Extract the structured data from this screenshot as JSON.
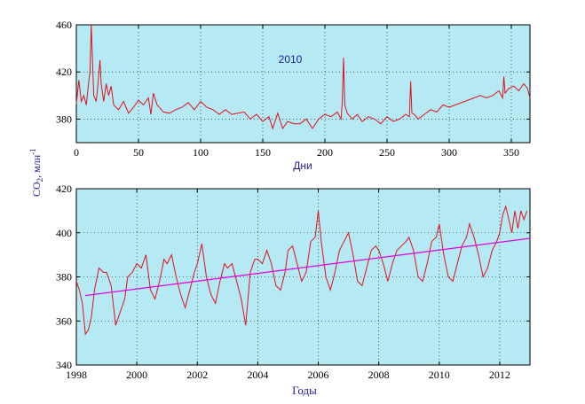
{
  "chart_data": [
    {
      "type": "line",
      "xlabel": "Дни",
      "ylabel": "",
      "annotation": "2010",
      "xlim": [
        0,
        365
      ],
      "ylim": [
        360,
        460
      ],
      "xticks": [
        0,
        50,
        100,
        150,
        200,
        250,
        300,
        350
      ],
      "yticks": [
        380,
        420,
        460
      ],
      "grid": true,
      "series": [
        {
          "color": "#e0101a",
          "x": [
            0,
            2,
            4,
            6,
            8,
            10,
            11,
            12,
            13,
            14,
            16,
            17,
            19,
            20,
            22,
            24,
            26,
            28,
            30,
            34,
            38,
            42,
            46,
            50,
            54,
            58,
            60,
            62,
            65,
            70,
            75,
            80,
            85,
            90,
            95,
            100,
            105,
            110,
            115,
            120,
            125,
            130,
            135,
            140,
            145,
            150,
            155,
            158,
            162,
            166,
            170,
            175,
            180,
            185,
            190,
            195,
            200,
            205,
            210,
            213,
            214,
            215,
            216,
            218,
            222,
            226,
            230,
            235,
            240,
            245,
            250,
            255,
            260,
            265,
            268,
            269,
            270,
            272,
            275,
            280,
            285,
            290,
            295,
            300,
            305,
            310,
            315,
            320,
            325,
            330,
            335,
            340,
            343,
            344,
            345,
            348,
            352,
            356,
            360,
            363,
            365
          ],
          "y": [
            393,
            413,
            395,
            400,
            392,
            412,
            420,
            460,
            430,
            400,
            395,
            405,
            430,
            410,
            395,
            410,
            400,
            408,
            392,
            388,
            395,
            385,
            390,
            396,
            392,
            398,
            384,
            402,
            392,
            386,
            385,
            388,
            390,
            394,
            388,
            395,
            390,
            388,
            384,
            388,
            384,
            385,
            386,
            380,
            384,
            378,
            382,
            372,
            385,
            372,
            378,
            376,
            376,
            380,
            372,
            380,
            384,
            382,
            386,
            380,
            395,
            432,
            392,
            385,
            380,
            384,
            378,
            382,
            380,
            376,
            382,
            378,
            380,
            384,
            382,
            412,
            385,
            384,
            380,
            384,
            388,
            386,
            392,
            390,
            392,
            394,
            396,
            398,
            400,
            398,
            400,
            404,
            398,
            416,
            402,
            406,
            408,
            404,
            410,
            406,
            398
          ]
        }
      ]
    },
    {
      "type": "line",
      "xlabel": "Годы",
      "ylabel": "CO₂, млн⁻¹",
      "ylabel_main": "CO",
      "ylabel_sub1": "2",
      "ylabel_rest": ", млн",
      "ylabel_sup": "-1",
      "xlim": [
        1998,
        2013
      ],
      "ylim": [
        340,
        420
      ],
      "xticks": [
        1998,
        2000,
        2002,
        2004,
        2006,
        2008,
        2010,
        2012
      ],
      "yticks": [
        340,
        360,
        380,
        400,
        420
      ],
      "grid": true,
      "series": [
        {
          "color": "#e0101a",
          "x": [
            1998.0,
            1998.1,
            1998.2,
            1998.3,
            1998.4,
            1998.5,
            1998.6,
            1998.75,
            1998.9,
            1999.0,
            1999.15,
            1999.3,
            1999.45,
            1999.6,
            1999.7,
            1999.85,
            2000.0,
            2000.15,
            2000.3,
            2000.45,
            2000.6,
            2000.75,
            2000.9,
            2001.0,
            2001.15,
            2001.3,
            2001.45,
            2001.6,
            2001.75,
            2001.9,
            2002.0,
            2002.15,
            2002.3,
            2002.45,
            2002.6,
            2002.75,
            2002.9,
            2003.0,
            2003.15,
            2003.3,
            2003.45,
            2003.6,
            2003.75,
            2003.9,
            2004.0,
            2004.15,
            2004.3,
            2004.45,
            2004.6,
            2004.75,
            2004.9,
            2005.0,
            2005.15,
            2005.3,
            2005.45,
            2005.6,
            2005.75,
            2005.9,
            2006.0,
            2006.1,
            2006.25,
            2006.4,
            2006.55,
            2006.7,
            2006.85,
            2007.0,
            2007.15,
            2007.3,
            2007.45,
            2007.6,
            2007.75,
            2007.9,
            2008.0,
            2008.15,
            2008.3,
            2008.45,
            2008.6,
            2008.75,
            2008.9,
            2009.0,
            2009.15,
            2009.3,
            2009.45,
            2009.6,
            2009.75,
            2009.9,
            2010.0,
            2010.15,
            2010.3,
            2010.45,
            2010.6,
            2010.75,
            2010.9,
            2011.0,
            2011.15,
            2011.3,
            2011.45,
            2011.6,
            2011.75,
            2011.9,
            2012.0,
            2012.1,
            2012.2,
            2012.3,
            2012.4,
            2012.5,
            2012.6,
            2012.7,
            2012.8,
            2012.9
          ],
          "y": [
            378,
            374,
            368,
            354,
            356,
            362,
            374,
            384,
            382,
            382,
            376,
            358,
            364,
            370,
            380,
            382,
            386,
            384,
            390,
            374,
            370,
            378,
            388,
            386,
            390,
            380,
            372,
            366,
            374,
            382,
            386,
            395,
            380,
            372,
            368,
            378,
            386,
            384,
            386,
            378,
            370,
            358,
            382,
            388,
            388,
            386,
            392,
            386,
            376,
            374,
            382,
            392,
            394,
            386,
            378,
            382,
            396,
            398,
            410,
            396,
            380,
            374,
            382,
            392,
            396,
            400,
            390,
            378,
            376,
            384,
            392,
            394,
            392,
            386,
            378,
            386,
            392,
            394,
            396,
            398,
            392,
            380,
            378,
            386,
            396,
            398,
            404,
            390,
            380,
            378,
            386,
            394,
            398,
            404,
            398,
            390,
            380,
            384,
            392,
            396,
            400,
            408,
            412,
            406,
            400,
            410,
            402,
            410,
            406,
            410
          ]
        },
        {
          "color": "#e000e0",
          "x": [
            1998.3,
            2013.0
          ],
          "y": [
            371.5,
            397.5
          ]
        }
      ]
    }
  ]
}
